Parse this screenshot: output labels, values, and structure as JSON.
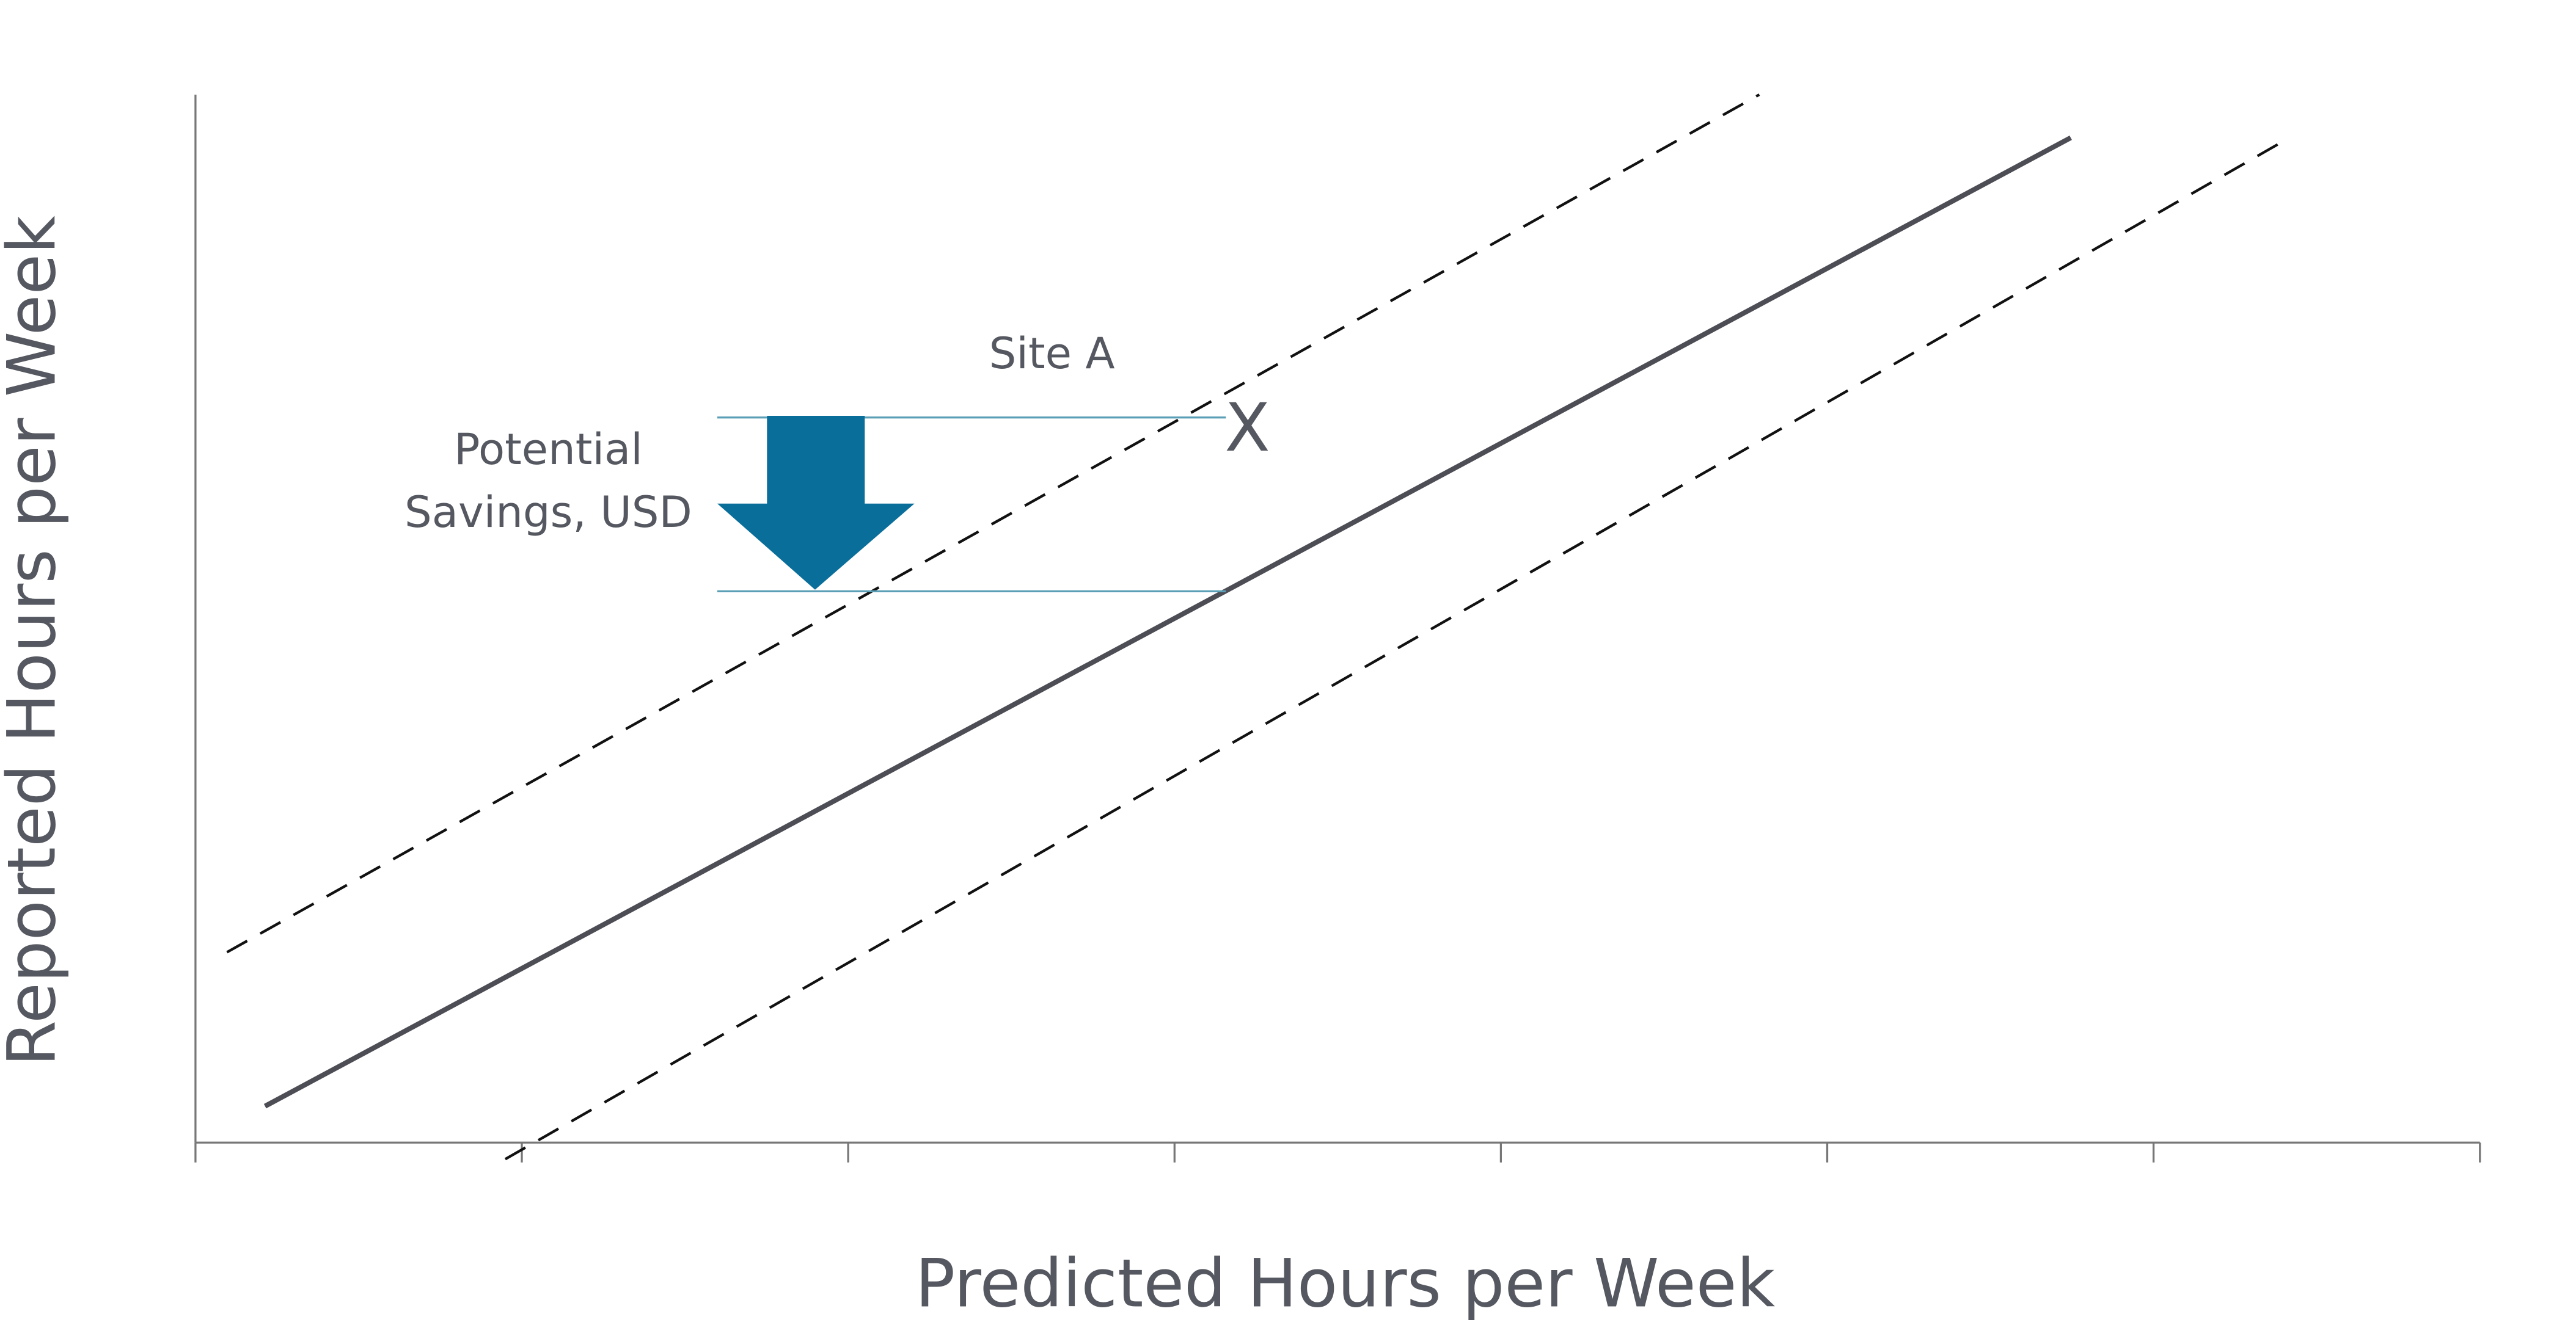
{
  "axes": {
    "x_label": "Predicted Hours per Week",
    "y_label": "Reported Hours per Week"
  },
  "annotations": {
    "site_label": "Site A",
    "site_marker": "X",
    "savings_label": [
      "Potential",
      "Savings, USD"
    ]
  }
}
